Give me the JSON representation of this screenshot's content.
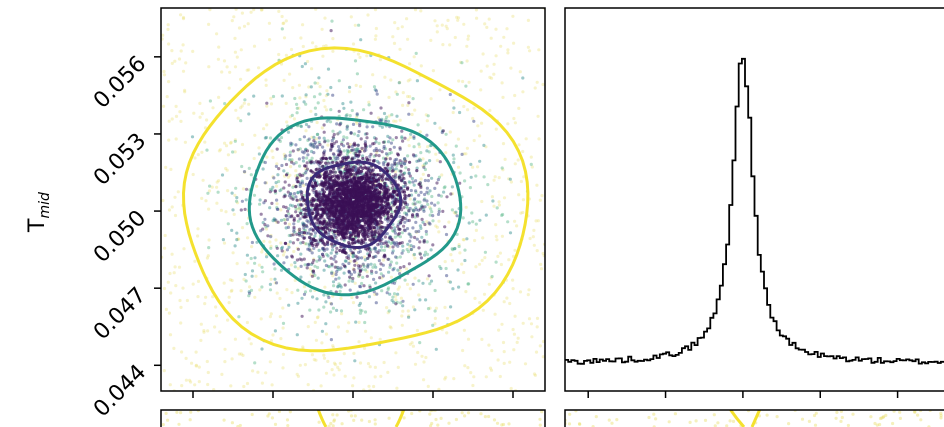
{
  "chart_data": [
    {
      "type": "scatter",
      "panel": "T_mid vs parameter (2D density with contours)",
      "ylabel": "T",
      "ylabel_subscript": "mid",
      "y_ticks": [
        "0.044",
        "0.047",
        "0.050",
        "0.053",
        "0.056"
      ],
      "y_tick_values": [
        0.044,
        0.047,
        0.05,
        0.053,
        0.056
      ],
      "ylim": [
        0.043,
        0.0579
      ],
      "xlim": [
        -2.4,
        2.4
      ],
      "x_tick_values": [
        -2,
        -1,
        0,
        1,
        2
      ],
      "center": [
        0.0,
        0.0503
      ],
      "contours": [
        {
          "level": "inner",
          "color": "#3b2a78",
          "radius_x": 0.58,
          "radius_y": 0.00165
        },
        {
          "level": "middle",
          "color": "#22998a",
          "radius_x": 1.32,
          "radius_y": 0.0034
        },
        {
          "level": "outer",
          "color": "#f4e12e",
          "radius_x": 2.15,
          "radius_y": 0.0058
        }
      ],
      "point_colors": [
        "#3b0f55",
        "#3e4a8a",
        "#2a8a8a",
        "#5ab78a",
        "#e8de6a"
      ]
    },
    {
      "type": "histogram",
      "panel": "marginal histogram",
      "peak_x": 0.0,
      "baseline_fraction": 0.05,
      "xlim": [
        -2.3,
        2.6
      ],
      "x_tick_values": [
        -2,
        -1,
        0,
        1,
        2
      ],
      "line_color": "#000000"
    }
  ]
}
